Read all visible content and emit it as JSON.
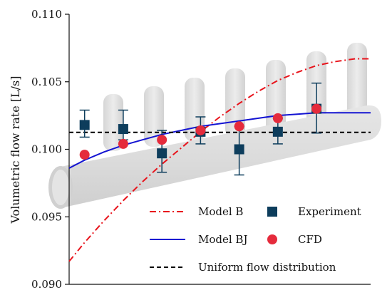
{
  "chart_data": {
    "type": "scatter",
    "ylabel": "Volumetric flow rate [L/s]",
    "xlabel": "",
    "ylim": [
      0.09,
      0.11
    ],
    "xlim": [
      0.6,
      8.4
    ],
    "yticks": [
      "0.090",
      "0.095",
      "0.100",
      "0.105",
      "0.110"
    ],
    "grid": false,
    "legend_position": "bottom-right",
    "background_picture": "manifold-pipe-with-seven-outlets",
    "series": [
      {
        "name": "Model B",
        "kind": "line",
        "style": "dash-dot",
        "color": "#e8141c",
        "x": [
          0.6,
          1.0,
          1.5,
          2.0,
          2.5,
          3.0,
          3.5,
          4.0,
          4.5,
          5.0,
          5.5,
          6.0,
          6.5,
          7.0,
          7.5,
          8.0,
          8.4
        ],
        "y": [
          0.0917,
          0.0931,
          0.0947,
          0.0962,
          0.0976,
          0.0989,
          0.1001,
          0.1013,
          0.1024,
          0.1034,
          0.1043,
          0.1051,
          0.1057,
          0.1062,
          0.1065,
          0.1067,
          0.1067
        ]
      },
      {
        "name": "Model BJ",
        "kind": "line",
        "style": "solid",
        "color": "#1414d2",
        "x": [
          0.6,
          1.0,
          1.5,
          2.0,
          2.5,
          3.0,
          3.5,
          4.0,
          4.5,
          5.0,
          5.5,
          6.0,
          6.5,
          7.0,
          7.5,
          8.0,
          8.4
        ],
        "y": [
          0.0986,
          0.0992,
          0.0998,
          0.1003,
          0.1007,
          0.1011,
          0.1014,
          0.1017,
          0.1019,
          0.1021,
          0.1023,
          0.1025,
          0.1026,
          0.1027,
          0.1027,
          0.1027,
          0.1027
        ]
      },
      {
        "name": "Uniform flow distribution",
        "kind": "line",
        "style": "dashed",
        "color": "#000000",
        "x": [
          0.6,
          8.4
        ],
        "y": [
          0.10125,
          0.10125
        ]
      },
      {
        "name": "Experiment",
        "kind": "points",
        "marker": "square",
        "color": "#0d3d5c",
        "x": [
          1,
          2,
          3,
          4,
          5,
          6,
          7
        ],
        "y": [
          0.1018,
          0.1015,
          0.0997,
          0.1013,
          0.1,
          0.1013,
          0.103
        ],
        "err_low": [
          0.1009,
          0.1007,
          0.0983,
          0.1004,
          0.0981,
          0.1004,
          0.1012
        ],
        "err_high": [
          0.1029,
          0.1029,
          0.1014,
          0.1024,
          0.1017,
          0.1023,
          0.1049
        ]
      },
      {
        "name": "CFD",
        "kind": "points",
        "marker": "circle",
        "color": "#e52b3c",
        "x": [
          1,
          2,
          3,
          4,
          5,
          6,
          7
        ],
        "y": [
          0.0996,
          0.1004,
          0.1007,
          0.1014,
          0.1017,
          0.1023,
          0.103
        ]
      }
    ],
    "legend": [
      {
        "label": "Model B",
        "series": 0
      },
      {
        "label": "Experiment",
        "series": 3
      },
      {
        "label": "Model BJ",
        "series": 1
      },
      {
        "label": "CFD",
        "series": 4
      },
      {
        "label": "Uniform flow distribution",
        "series": 2
      }
    ]
  }
}
